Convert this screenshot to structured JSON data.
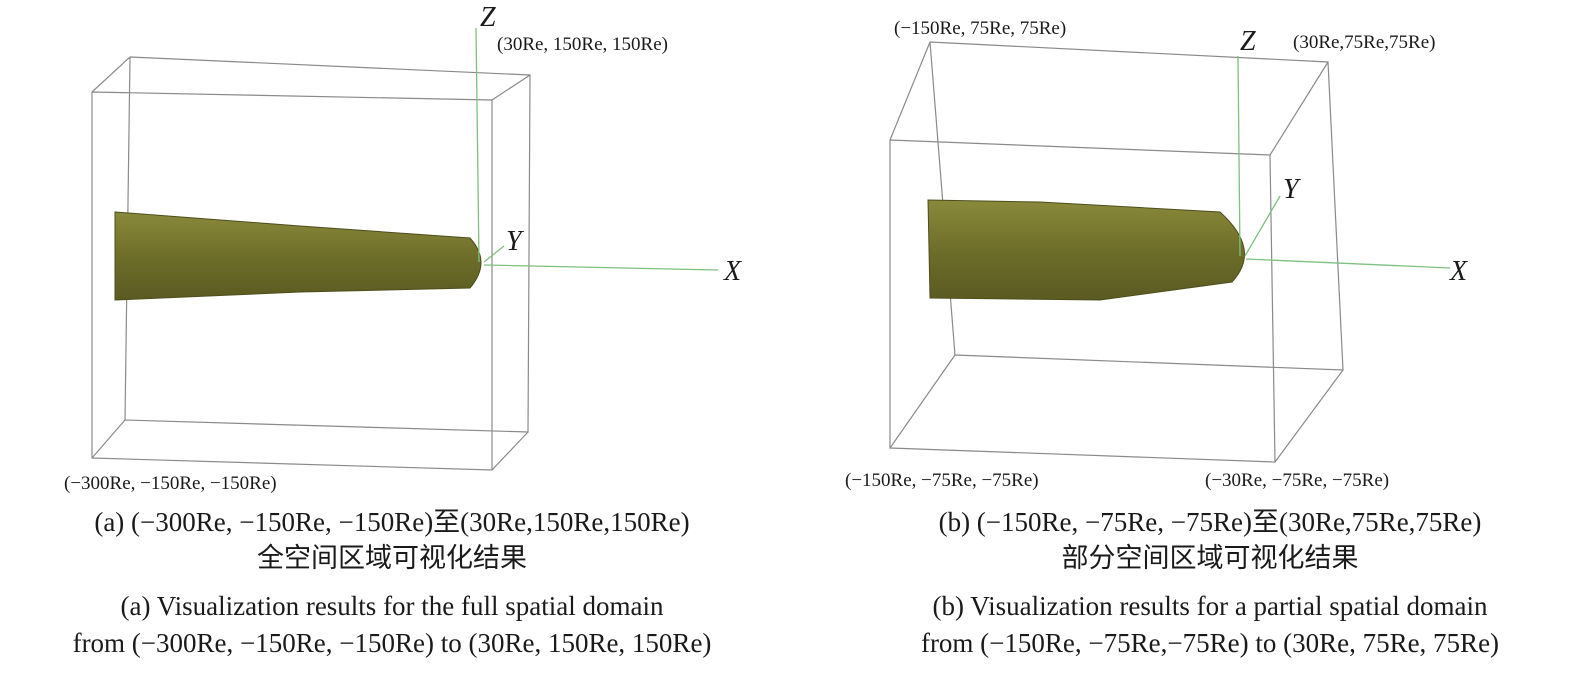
{
  "panels": [
    {
      "z_label": "Z",
      "y_label": "Y",
      "x_label": "X",
      "corner_labels": [
        "(30Re, 150Re, 150Re)",
        "(−300Re, −150Re, −150Re)"
      ],
      "caption_zh": [
        "(a) (−300Re, −150Re, −150Re)至(30Re,150Re,150Re)",
        "全空间区域可视化结果"
      ],
      "caption_en": [
        "(a) Visualization results for the full spatial domain",
        "from (−300Re, −150Re, −150Re) to (30Re, 150Re, 150Re)"
      ]
    },
    {
      "z_label": "Z",
      "y_label": "Y",
      "x_label": "X",
      "corner_labels": [
        "(−150Re, 75Re, 75Re)",
        "(30Re,75Re,75Re)",
        "(−150Re, −75Re, −75Re)",
        "(−30Re, −75Re, −75Re)"
      ],
      "caption_zh": [
        "(b) (−150Re, −75Re, −75Re)至(30Re,75Re,75Re)",
        "部分空间区域可视化结果"
      ],
      "caption_en": [
        "(b) Visualization results for a partial spatial  domain",
        "from (−150Re, −75Re,−75Re) to (30Re, 75Re, 75Re)"
      ]
    }
  ]
}
